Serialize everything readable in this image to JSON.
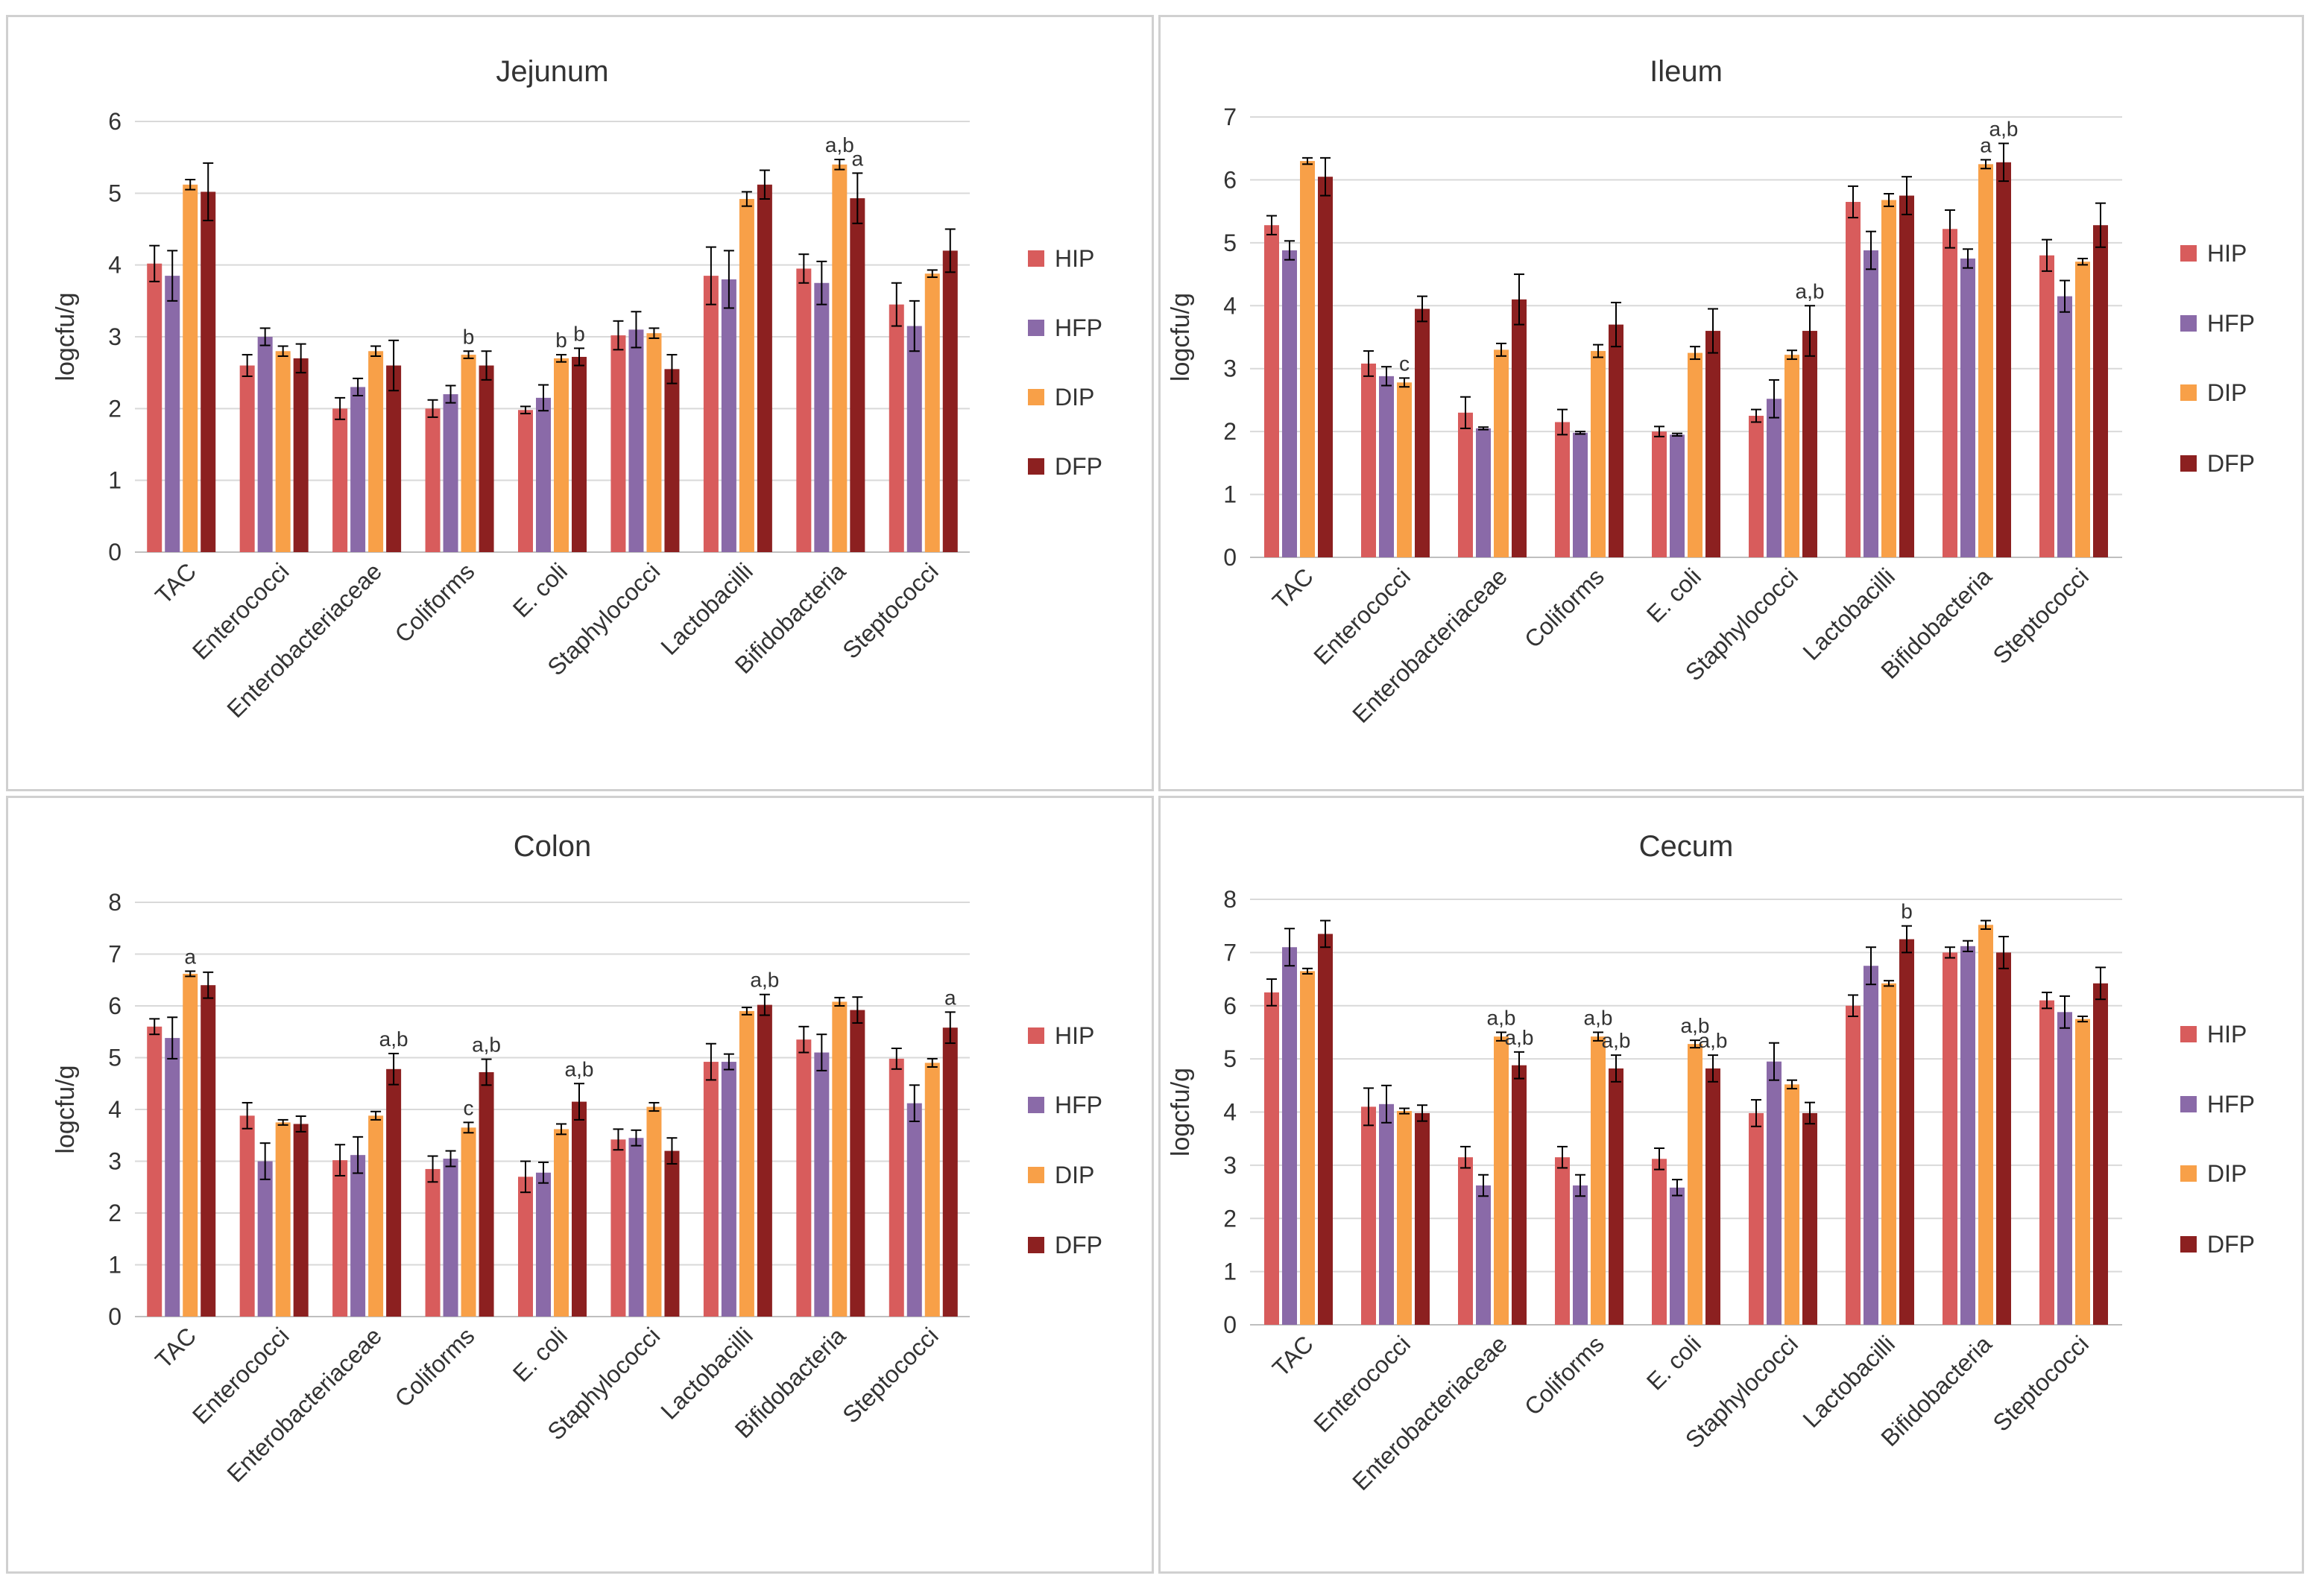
{
  "colors": {
    "HIP": "#d85c5c",
    "HFP": "#8a6aa8",
    "DIP": "#f8a048",
    "DFP": "#8c2020"
  },
  "chart_data": [
    {
      "type": "bar",
      "title": "Jejunum",
      "ylabel": "logcfu/g",
      "ylim": [
        0,
        6
      ],
      "yticks": [
        "0",
        "1",
        "2",
        "3",
        "4",
        "5",
        "6"
      ],
      "categories": [
        "TAC",
        "Enterococci",
        "Enterobacteriaceae",
        "Coliforms",
        "E. coli",
        "Staphylococci",
        "Lactobacilli",
        "Bifidobacteria",
        "Steptococci"
      ],
      "series": [
        {
          "name": "HIP",
          "values": [
            4.02,
            2.6,
            2.0,
            2.0,
            1.98,
            3.02,
            3.85,
            3.95,
            3.45
          ],
          "errors": [
            0.25,
            0.15,
            0.15,
            0.12,
            0.05,
            0.2,
            0.4,
            0.2,
            0.3
          ]
        },
        {
          "name": "HFP",
          "values": [
            3.85,
            3.0,
            2.3,
            2.2,
            2.15,
            3.1,
            3.8,
            3.75,
            3.15
          ],
          "errors": [
            0.35,
            0.12,
            0.12,
            0.12,
            0.18,
            0.25,
            0.4,
            0.3,
            0.35
          ]
        },
        {
          "name": "DIP",
          "values": [
            5.12,
            2.8,
            2.8,
            2.75,
            2.7,
            3.05,
            4.92,
            5.4,
            3.88
          ],
          "errors": [
            0.07,
            0.07,
            0.07,
            0.05,
            0.05,
            0.07,
            0.1,
            0.07,
            0.05
          ]
        },
        {
          "name": "DFP",
          "values": [
            5.02,
            2.7,
            2.6,
            2.6,
            2.72,
            2.55,
            5.12,
            4.93,
            4.2
          ],
          "errors": [
            0.4,
            0.2,
            0.35,
            0.2,
            0.12,
            0.2,
            0.2,
            0.35,
            0.3
          ]
        }
      ],
      "annotations": [
        {
          "category": "Coliforms",
          "series": "DIP",
          "text": "b"
        },
        {
          "category": "E. coli",
          "series": "DIP",
          "text": "b"
        },
        {
          "category": "E. coli",
          "series": "DFP",
          "text": "b"
        },
        {
          "category": "Bifidobacteria",
          "series": "DIP",
          "text": "a,b"
        },
        {
          "category": "Bifidobacteria",
          "series": "DFP",
          "text": "a"
        }
      ]
    },
    {
      "type": "bar",
      "title": "Ileum",
      "ylabel": "logcfu/g",
      "ylim": [
        0,
        7
      ],
      "yticks": [
        "0",
        "1",
        "2",
        "3",
        "4",
        "5",
        "6",
        "7"
      ],
      "categories": [
        "TAC",
        "Enterococci",
        "Enterobacteriaceae",
        "Coliforms",
        "E. coli",
        "Staphylococci",
        "Lactobacilli",
        "Bifidobacteria",
        "Steptococci"
      ],
      "series": [
        {
          "name": "HIP",
          "values": [
            5.28,
            3.08,
            2.3,
            2.15,
            2.0,
            2.25,
            5.65,
            5.22,
            4.8
          ],
          "errors": [
            0.15,
            0.2,
            0.25,
            0.2,
            0.08,
            0.1,
            0.25,
            0.3,
            0.25
          ]
        },
        {
          "name": "HFP",
          "values": [
            4.88,
            2.88,
            2.05,
            1.98,
            1.95,
            2.52,
            4.88,
            4.75,
            4.15
          ],
          "errors": [
            0.15,
            0.15,
            0.02,
            0.02,
            0.02,
            0.3,
            0.3,
            0.15,
            0.25
          ]
        },
        {
          "name": "DIP",
          "values": [
            6.3,
            2.78,
            3.3,
            3.28,
            3.25,
            3.22,
            5.68,
            6.25,
            4.7
          ],
          "errors": [
            0.05,
            0.07,
            0.1,
            0.1,
            0.1,
            0.07,
            0.1,
            0.07,
            0.05
          ]
        },
        {
          "name": "DFP",
          "values": [
            6.05,
            3.95,
            4.1,
            3.7,
            3.6,
            3.6,
            5.75,
            6.28,
            5.28
          ],
          "errors": [
            0.3,
            0.2,
            0.4,
            0.35,
            0.35,
            0.4,
            0.3,
            0.3,
            0.35
          ]
        }
      ],
      "annotations": [
        {
          "category": "Enterococci",
          "series": "DIP",
          "text": "c"
        },
        {
          "category": "Staphylococci",
          "series": "DFP",
          "text": "a,b"
        },
        {
          "category": "Bifidobacteria",
          "series": "DIP",
          "text": "a"
        },
        {
          "category": "Bifidobacteria",
          "series": "DFP",
          "text": "a,b"
        }
      ]
    },
    {
      "type": "bar",
      "title": "Colon",
      "ylabel": "logcfu/g",
      "ylim": [
        0,
        8
      ],
      "yticks": [
        "0",
        "1",
        "2",
        "3",
        "4",
        "5",
        "6",
        "7",
        "8"
      ],
      "categories": [
        "TAC",
        "Enterococci",
        "Enterobacteriaceae",
        "Coliforms",
        "E. coli",
        "Staphylococci",
        "Lactobacilli",
        "Bifidobacteria",
        "Steptococci"
      ],
      "series": [
        {
          "name": "HIP",
          "values": [
            5.6,
            3.88,
            3.02,
            2.85,
            2.7,
            3.42,
            4.92,
            5.35,
            4.98
          ],
          "errors": [
            0.15,
            0.25,
            0.3,
            0.25,
            0.3,
            0.2,
            0.35,
            0.25,
            0.2
          ]
        },
        {
          "name": "HFP",
          "values": [
            5.38,
            3.0,
            3.12,
            3.05,
            2.78,
            3.45,
            4.92,
            5.1,
            4.12
          ],
          "errors": [
            0.4,
            0.35,
            0.35,
            0.15,
            0.2,
            0.15,
            0.15,
            0.35,
            0.35
          ]
        },
        {
          "name": "DIP",
          "values": [
            6.62,
            3.75,
            3.88,
            3.65,
            3.62,
            4.05,
            5.9,
            6.08,
            4.9
          ],
          "errors": [
            0.05,
            0.05,
            0.08,
            0.1,
            0.1,
            0.08,
            0.07,
            0.08,
            0.08
          ]
        },
        {
          "name": "DFP",
          "values": [
            6.4,
            3.72,
            4.78,
            4.72,
            4.15,
            3.2,
            6.02,
            5.92,
            5.58
          ],
          "errors": [
            0.25,
            0.15,
            0.3,
            0.25,
            0.35,
            0.25,
            0.2,
            0.25,
            0.3
          ]
        }
      ],
      "annotations": [
        {
          "category": "TAC",
          "series": "DIP",
          "text": "a"
        },
        {
          "category": "Enterobacteriaceae",
          "series": "DFP",
          "text": "a,b"
        },
        {
          "category": "Coliforms",
          "series": "DIP",
          "text": "c"
        },
        {
          "category": "Coliforms",
          "series": "DFP",
          "text": "a,b"
        },
        {
          "category": "E. coli",
          "series": "DFP",
          "text": "a,b"
        },
        {
          "category": "Lactobacilli",
          "series": "DFP",
          "text": "a,b"
        },
        {
          "category": "Steptococci",
          "series": "DFP",
          "text": "a"
        }
      ]
    },
    {
      "type": "bar",
      "title": "Cecum",
      "ylabel": "logcfu/g",
      "ylim": [
        0,
        8
      ],
      "yticks": [
        "0",
        "1",
        "2",
        "3",
        "4",
        "5",
        "6",
        "7",
        "8"
      ],
      "categories": [
        "TAC",
        "Enterococci",
        "Enterobacteriaceae",
        "Coliforms",
        "E. coli",
        "Staphylococci",
        "Lactobacilli",
        "Bifidobacteria",
        "Steptococci"
      ],
      "series": [
        {
          "name": "HIP",
          "values": [
            6.25,
            4.1,
            3.15,
            3.15,
            3.12,
            3.98,
            6.0,
            7.0,
            6.1
          ],
          "errors": [
            0.25,
            0.35,
            0.2,
            0.2,
            0.2,
            0.25,
            0.2,
            0.1,
            0.15
          ]
        },
        {
          "name": "HFP",
          "values": [
            7.1,
            4.15,
            2.62,
            2.62,
            2.58,
            4.95,
            6.75,
            7.12,
            5.88
          ],
          "errors": [
            0.35,
            0.35,
            0.2,
            0.2,
            0.15,
            0.35,
            0.35,
            0.1,
            0.3
          ]
        },
        {
          "name": "DIP",
          "values": [
            6.65,
            4.02,
            5.42,
            5.42,
            5.28,
            4.52,
            6.42,
            7.52,
            5.75
          ],
          "errors": [
            0.05,
            0.05,
            0.08,
            0.08,
            0.07,
            0.08,
            0.05,
            0.08,
            0.05
          ]
        },
        {
          "name": "DFP",
          "values": [
            7.35,
            3.98,
            4.88,
            4.82,
            4.82,
            3.98,
            7.25,
            7.0,
            6.42
          ],
          "errors": [
            0.25,
            0.15,
            0.25,
            0.25,
            0.25,
            0.2,
            0.25,
            0.3,
            0.3
          ]
        }
      ],
      "annotations": [
        {
          "category": "Enterobacteriaceae",
          "series": "DIP",
          "text": "a,b"
        },
        {
          "category": "Enterobacteriaceae",
          "series": "DFP",
          "text": "a,b"
        },
        {
          "category": "Coliforms",
          "series": "DIP",
          "text": "a,b"
        },
        {
          "category": "Coliforms",
          "series": "DFP",
          "text": "a,b"
        },
        {
          "category": "E. coli",
          "series": "DIP",
          "text": "a,b"
        },
        {
          "category": "E. coli",
          "series": "DFP",
          "text": "a,b"
        },
        {
          "category": "Lactobacilli",
          "series": "DFP",
          "text": "b"
        }
      ]
    }
  ]
}
